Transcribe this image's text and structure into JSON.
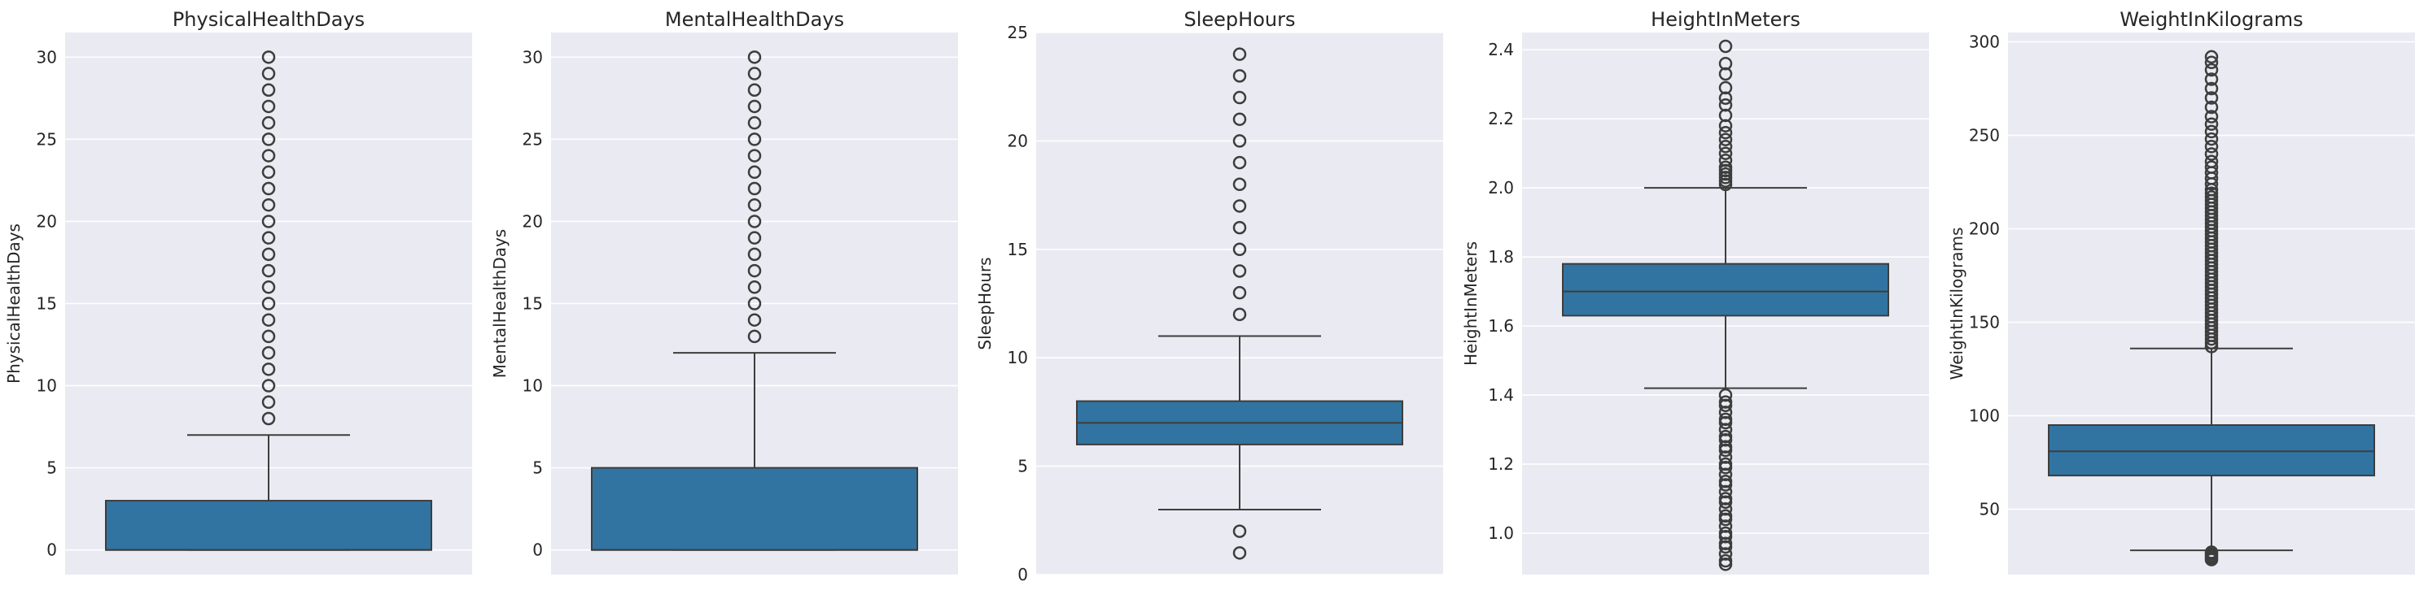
{
  "chart_data": [
    {
      "type": "box",
      "title": "PhysicalHealthDays",
      "ylabel": "PhysicalHealthDays",
      "ylim": [
        -1.5,
        31.5
      ],
      "yticks": [
        0,
        5,
        10,
        15,
        20,
        25,
        30
      ],
      "grid": true,
      "box": {
        "whisker_low": 0,
        "q1": 0,
        "median": 0,
        "q3": 3,
        "whisker_high": 7
      },
      "outliers": [
        8,
        9,
        10,
        11,
        12,
        13,
        14,
        15,
        16,
        17,
        18,
        19,
        20,
        21,
        22,
        23,
        24,
        25,
        26,
        27,
        28,
        29,
        30
      ]
    },
    {
      "type": "box",
      "title": "MentalHealthDays",
      "ylabel": "MentalHealthDays",
      "ylim": [
        -1.5,
        31.5
      ],
      "yticks": [
        0,
        5,
        10,
        15,
        20,
        25,
        30
      ],
      "grid": true,
      "box": {
        "whisker_low": 0,
        "q1": 0,
        "median": 0,
        "q3": 5,
        "whisker_high": 12
      },
      "outliers": [
        13,
        14,
        15,
        16,
        17,
        18,
        19,
        20,
        21,
        22,
        23,
        24,
        25,
        26,
        27,
        28,
        29,
        30
      ]
    },
    {
      "type": "box",
      "title": "SleepHours",
      "ylabel": "SleepHours",
      "ylim": [
        0,
        25
      ],
      "yticks": [
        0,
        5,
        10,
        15,
        20,
        25
      ],
      "grid": true,
      "box": {
        "whisker_low": 3,
        "q1": 6,
        "median": 7,
        "q3": 8,
        "whisker_high": 11
      },
      "outliers": [
        1,
        2,
        12,
        13,
        14,
        15,
        16,
        17,
        18,
        19,
        20,
        21,
        22,
        23,
        24
      ]
    },
    {
      "type": "box",
      "title": "HeightInMeters",
      "ylabel": "HeightInMeters",
      "ylim": [
        0.88,
        2.45
      ],
      "yticks": [
        1.0,
        1.2,
        1.4,
        1.6,
        1.8,
        2.0,
        2.2,
        2.4
      ],
      "ytick_labels": [
        "1.0",
        "1.2",
        "1.4",
        "1.6",
        "1.8",
        "2.0",
        "2.2",
        "2.4"
      ],
      "grid": true,
      "box": {
        "whisker_low": 1.42,
        "q1": 1.63,
        "median": 1.7,
        "q3": 1.78,
        "whisker_high": 2.0
      },
      "outliers": [
        0.91,
        0.92,
        0.94,
        0.96,
        0.97,
        0.99,
        1.0,
        1.02,
        1.04,
        1.05,
        1.07,
        1.09,
        1.1,
        1.12,
        1.14,
        1.15,
        1.17,
        1.19,
        1.2,
        1.22,
        1.24,
        1.25,
        1.27,
        1.28,
        1.3,
        1.32,
        1.33,
        1.35,
        1.37,
        1.38,
        1.4,
        2.01,
        2.02,
        2.03,
        2.04,
        2.05,
        2.06,
        2.08,
        2.1,
        2.12,
        2.14,
        2.16,
        2.18,
        2.21,
        2.24,
        2.26,
        2.29,
        2.33,
        2.36,
        2.41
      ]
    },
    {
      "type": "box",
      "title": "WeightInKilograms",
      "ylabel": "WeightInKilograms",
      "ylim": [
        15,
        305
      ],
      "yticks": [
        50,
        100,
        150,
        200,
        250,
        300
      ],
      "grid": true,
      "box": {
        "whisker_low": 28,
        "q1": 68,
        "median": 81,
        "q3": 95,
        "whisker_high": 136
      },
      "outliers": [
        23,
        24,
        25,
        26,
        27,
        137,
        139,
        141,
        143,
        145,
        147,
        149,
        151,
        153,
        155,
        157,
        159,
        161,
        163,
        165,
        167,
        169,
        171,
        173,
        175,
        177,
        179,
        181,
        183,
        185,
        187,
        189,
        191,
        193,
        195,
        197,
        199,
        201,
        203,
        205,
        207,
        209,
        211,
        213,
        215,
        217,
        219,
        221,
        224,
        227,
        230,
        233,
        236,
        240,
        244,
        248,
        252,
        256,
        260,
        265,
        270,
        275,
        280,
        285,
        289,
        292
      ]
    }
  ],
  "colors": {
    "panel_bg": "#eaeaf2",
    "grid": "#ffffff",
    "box_fill": "#3274a1",
    "line": "#3d3d3d",
    "outlier_stroke": "#3d3d3d"
  }
}
